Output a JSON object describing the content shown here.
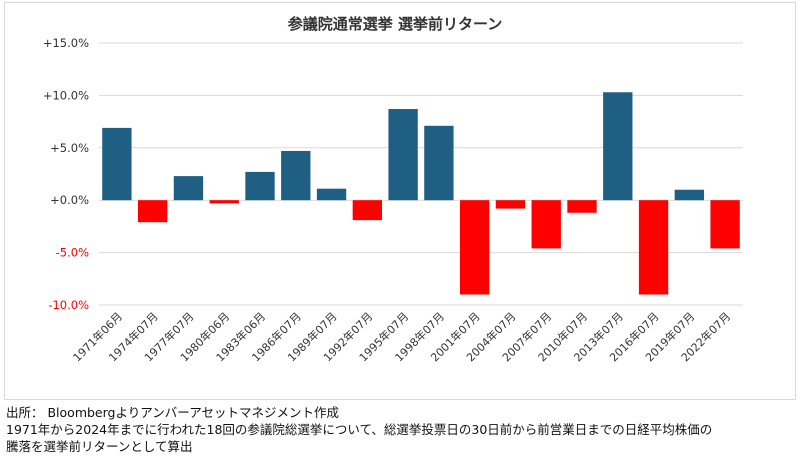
{
  "chart_data": {
    "type": "bar",
    "title": "参議院通常選挙 選挙前リターン",
    "categories": [
      "1971年06月",
      "1974年07月",
      "1977年07月",
      "1980年06月",
      "1983年06月",
      "1986年07月",
      "1989年07月",
      "1992年07月",
      "1995年07月",
      "1998年07月",
      "2001年07月",
      "2004年07月",
      "2007年07月",
      "2010年07月",
      "2013年07月",
      "2016年07月",
      "2019年07月",
      "2022年07月"
    ],
    "values": [
      6.9,
      -2.1,
      2.3,
      -0.3,
      2.7,
      4.7,
      1.1,
      -1.9,
      8.7,
      7.1,
      -9.0,
      -0.8,
      -4.6,
      -1.2,
      10.3,
      -9.0,
      1.0,
      -4.6
    ],
    "ylim": [
      -10,
      15
    ],
    "yticks": [
      15,
      10,
      5,
      0,
      -5,
      -10
    ],
    "ytick_labels": [
      "+15.0%",
      "+10.0%",
      "+5.0%",
      "+0.0%",
      "-5.0%",
      "-10.0%"
    ],
    "grid": true,
    "colors": {
      "positive": "#1f5f84",
      "negative": "#ff0000",
      "negative_tick_label": "#ff0000",
      "positive_tick_label": "#333333",
      "grid": "#d9d9d9"
    }
  },
  "footer": {
    "line1": "出所： Bloombergよりアンバーアセットマネジメント作成",
    "line2": "1971年から2024年までに行われた18回の参議院総選挙について、総選挙投票日の30日前から前営業日までの日経平均株価の",
    "line3": "騰落を選挙前リターンとして算出"
  }
}
